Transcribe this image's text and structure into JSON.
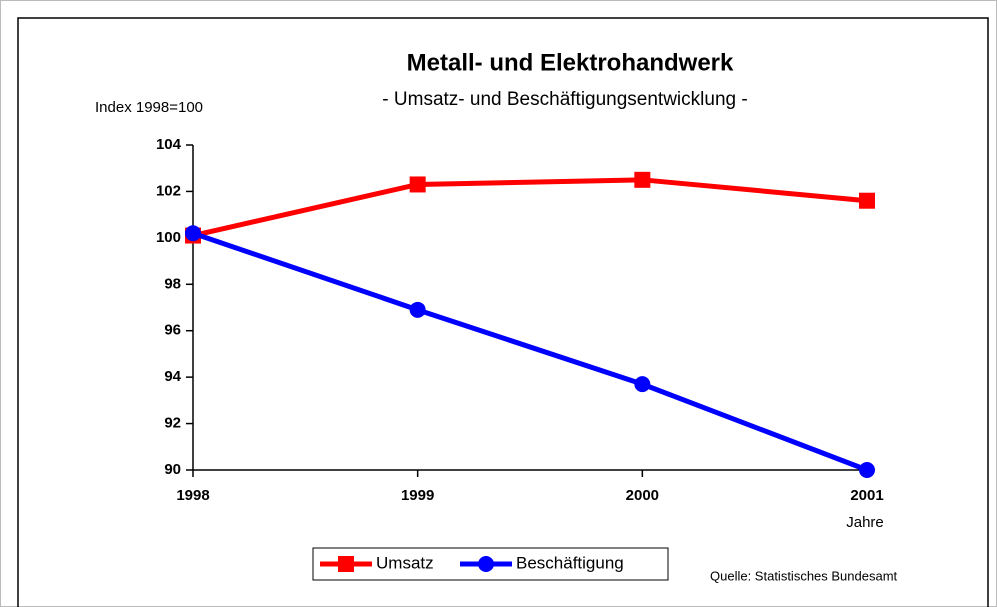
{
  "chart_data": {
    "type": "line",
    "title": "Metall- und Elektrohandwerk",
    "subtitle": "- Umsatz- und Beschäftigungsentwicklung -",
    "y_label": "Index 1998=100",
    "x_label": "Jahre",
    "source": "Quelle: Statistisches Bundesamt",
    "x": [
      1998,
      1999,
      2000,
      2001
    ],
    "xlim": [
      1998,
      2001
    ],
    "xticks": [
      1998,
      1999,
      2000,
      2001
    ],
    "ylim": [
      90,
      104
    ],
    "yticks": [
      90,
      92,
      94,
      96,
      98,
      100,
      102,
      104
    ],
    "series": [
      {
        "name": "Umsatz",
        "color": "#ff0000",
        "marker": "square",
        "values": [
          100.1,
          102.3,
          102.5,
          101.6
        ]
      },
      {
        "name": "Beschäftigung",
        "color": "#0000ff",
        "marker": "circle",
        "values": [
          100.2,
          96.9,
          93.7,
          90.0
        ]
      }
    ]
  }
}
